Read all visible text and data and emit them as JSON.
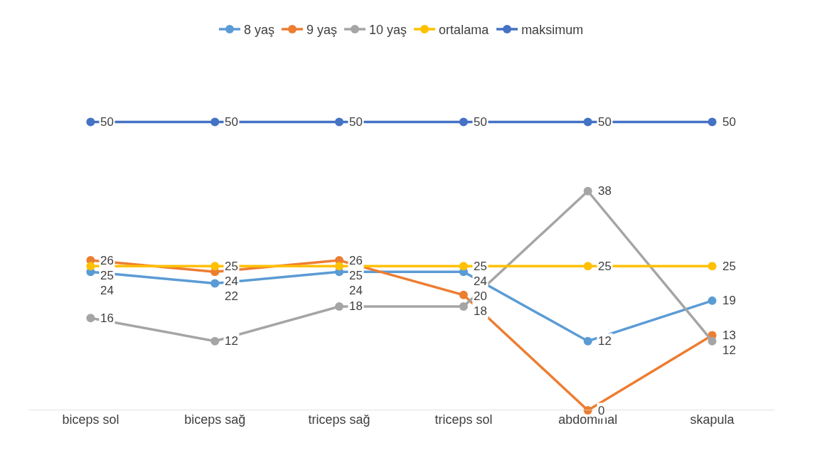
{
  "chart_data": {
    "type": "line",
    "categories": [
      "biceps sol",
      "biceps sağ",
      "triceps sağ",
      "triceps sol",
      "abdominal",
      "skapula"
    ],
    "series": [
      {
        "name": "8 yaş",
        "color": "#5b9bd5",
        "values": [
          24,
          22,
          24,
          24,
          12,
          19
        ]
      },
      {
        "name": "9 yaş",
        "color": "#ed7d31",
        "values": [
          26,
          24,
          26,
          20,
          0,
          13
        ]
      },
      {
        "name": "10 yaş",
        "color": "#a5a5a5",
        "values": [
          16,
          12,
          18,
          18,
          38,
          12
        ]
      },
      {
        "name": "ortalama",
        "color": "#ffc000",
        "values": [
          25,
          25,
          25,
          25,
          25,
          25
        ]
      },
      {
        "name": "maksimum",
        "color": "#4472c4",
        "values": [
          50,
          50,
          50,
          50,
          50,
          50
        ]
      }
    ],
    "data_labels": true,
    "grid": false,
    "legend": "top",
    "marker": "circle",
    "line_style": "solid",
    "tick_labels": "x"
  }
}
